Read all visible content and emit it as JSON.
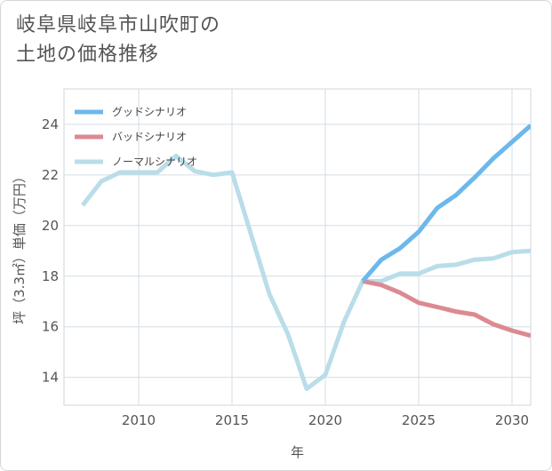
{
  "title_line1": "岐阜県岐阜市山吹町の",
  "title_line2": "土地の価格推移",
  "chart_data": {
    "type": "line",
    "xlabel": "年",
    "ylabel": "坪（3.3㎡）単価（万円）",
    "xlim": [
      2006,
      2031
    ],
    "ylim": [
      12.9,
      25.4
    ],
    "xticks": [
      2010,
      2015,
      2020,
      2025,
      2030
    ],
    "yticks": [
      14,
      16,
      18,
      20,
      22,
      24
    ],
    "legend_position": "top-left",
    "series": [
      {
        "name": "グッドシナリオ",
        "color": "#6cb8ec",
        "x": [
          2022,
          2023,
          2024,
          2025,
          2026,
          2027,
          2028,
          2029,
          2030,
          2031
        ],
        "values": [
          17.8,
          18.65,
          19.1,
          19.75,
          20.7,
          21.2,
          21.9,
          22.65,
          23.3,
          23.95
        ]
      },
      {
        "name": "バッドシナリオ",
        "color": "#dc8a92",
        "x": [
          2022,
          2023,
          2024,
          2025,
          2026,
          2027,
          2028,
          2029,
          2030,
          2031
        ],
        "values": [
          17.8,
          17.65,
          17.35,
          16.95,
          16.78,
          16.6,
          16.48,
          16.1,
          15.85,
          15.65
        ]
      },
      {
        "name": "ノーマルシナリオ",
        "color": "#b9dde9",
        "x": [
          2007,
          2008,
          2009,
          2010,
          2011,
          2012,
          2013,
          2014,
          2015,
          2016,
          2017,
          2018,
          2019,
          2020,
          2021,
          2022,
          2023,
          2024,
          2025,
          2026,
          2027,
          2028,
          2029,
          2030,
          2031
        ],
        "values": [
          20.8,
          21.75,
          22.1,
          22.1,
          22.1,
          22.75,
          22.15,
          22.0,
          22.1,
          19.7,
          17.3,
          15.7,
          13.55,
          14.1,
          16.2,
          17.8,
          17.8,
          18.1,
          18.1,
          18.4,
          18.45,
          18.65,
          18.7,
          18.95,
          19.0
        ]
      }
    ]
  }
}
